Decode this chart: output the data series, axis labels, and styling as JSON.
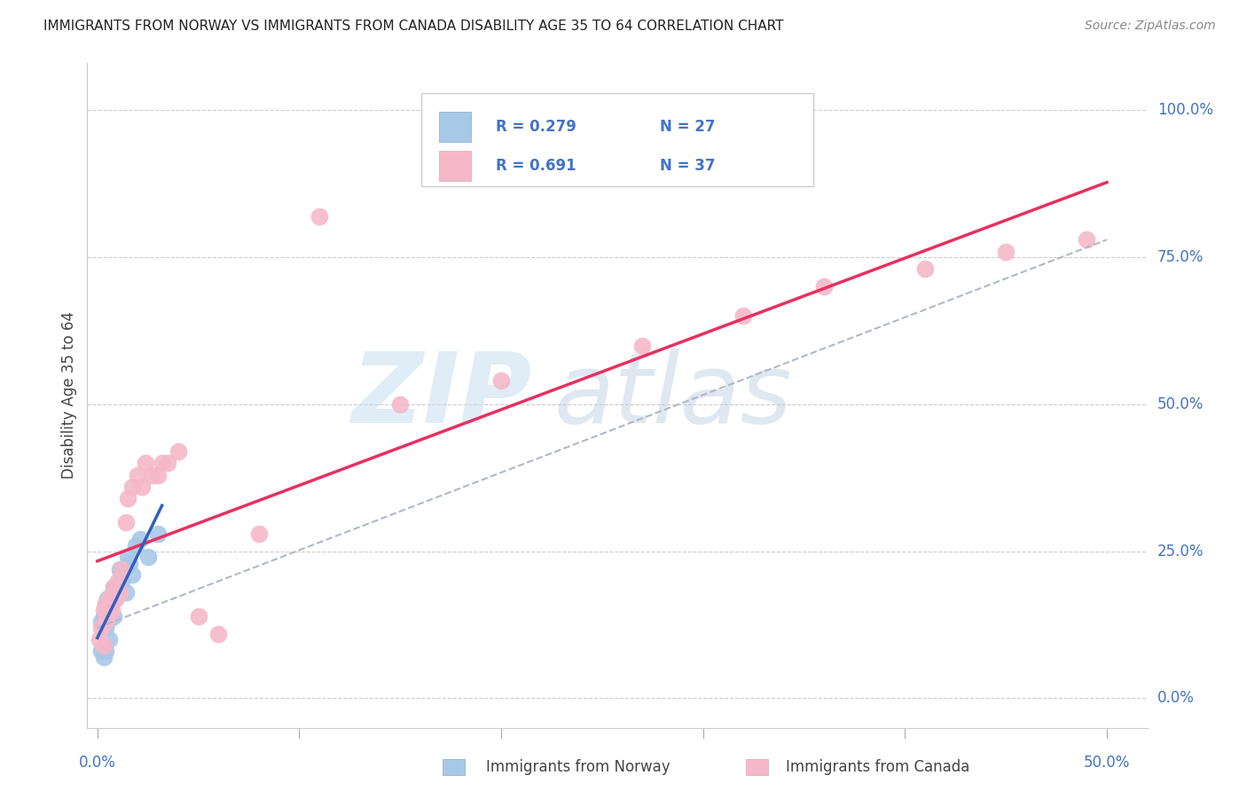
{
  "title": "IMMIGRANTS FROM NORWAY VS IMMIGRANTS FROM CANADA DISABILITY AGE 35 TO 64 CORRELATION CHART",
  "source": "Source: ZipAtlas.com",
  "ylabel": "Disability Age 35 to 64",
  "ytick_labels": [
    "0.0%",
    "25.0%",
    "50.0%",
    "75.0%",
    "100.0%"
  ],
  "ytick_values": [
    0.0,
    0.25,
    0.5,
    0.75,
    1.0
  ],
  "xtick_labels": [
    "0.0%",
    "50.0%"
  ],
  "xtick_values": [
    0.0,
    0.5
  ],
  "xlim": [
    -0.005,
    0.52
  ],
  "ylim": [
    -0.05,
    1.08
  ],
  "norway_R": 0.279,
  "norway_N": 27,
  "canada_R": 0.691,
  "canada_N": 37,
  "norway_color": "#a8c8e8",
  "canada_color": "#f5b8c8",
  "norway_line_color": "#3060c0",
  "canada_line_color": "#e83060",
  "dash_color": "#b0b8c8",
  "background_color": "#ffffff",
  "legend_norway": "Immigrants from Norway",
  "legend_canada": "Immigrants from Canada",
  "norway_x": [
    0.002,
    0.002,
    0.003,
    0.003,
    0.004,
    0.004,
    0.004,
    0.005,
    0.005,
    0.006,
    0.006,
    0.007,
    0.008,
    0.008,
    0.009,
    0.01,
    0.011,
    0.012,
    0.013,
    0.014,
    0.015,
    0.016,
    0.017,
    0.019,
    0.021,
    0.025,
    0.03
  ],
  "norway_y": [
    0.08,
    0.13,
    0.07,
    0.14,
    0.08,
    0.12,
    0.16,
    0.13,
    0.17,
    0.1,
    0.15,
    0.17,
    0.14,
    0.19,
    0.17,
    0.19,
    0.22,
    0.2,
    0.22,
    0.18,
    0.24,
    0.23,
    0.21,
    0.26,
    0.27,
    0.24,
    0.28
  ],
  "canada_x": [
    0.001,
    0.002,
    0.003,
    0.003,
    0.004,
    0.004,
    0.005,
    0.006,
    0.007,
    0.008,
    0.009,
    0.01,
    0.011,
    0.012,
    0.014,
    0.015,
    0.017,
    0.02,
    0.022,
    0.024,
    0.027,
    0.03,
    0.032,
    0.035,
    0.04,
    0.05,
    0.06,
    0.08,
    0.11,
    0.15,
    0.2,
    0.27,
    0.32,
    0.36,
    0.41,
    0.45,
    0.49
  ],
  "canada_y": [
    0.1,
    0.12,
    0.09,
    0.15,
    0.13,
    0.16,
    0.14,
    0.17,
    0.15,
    0.19,
    0.17,
    0.2,
    0.18,
    0.22,
    0.3,
    0.34,
    0.36,
    0.38,
    0.36,
    0.4,
    0.38,
    0.38,
    0.4,
    0.4,
    0.42,
    0.14,
    0.11,
    0.28,
    0.82,
    0.5,
    0.54,
    0.6,
    0.65,
    0.7,
    0.73,
    0.76,
    0.78
  ]
}
